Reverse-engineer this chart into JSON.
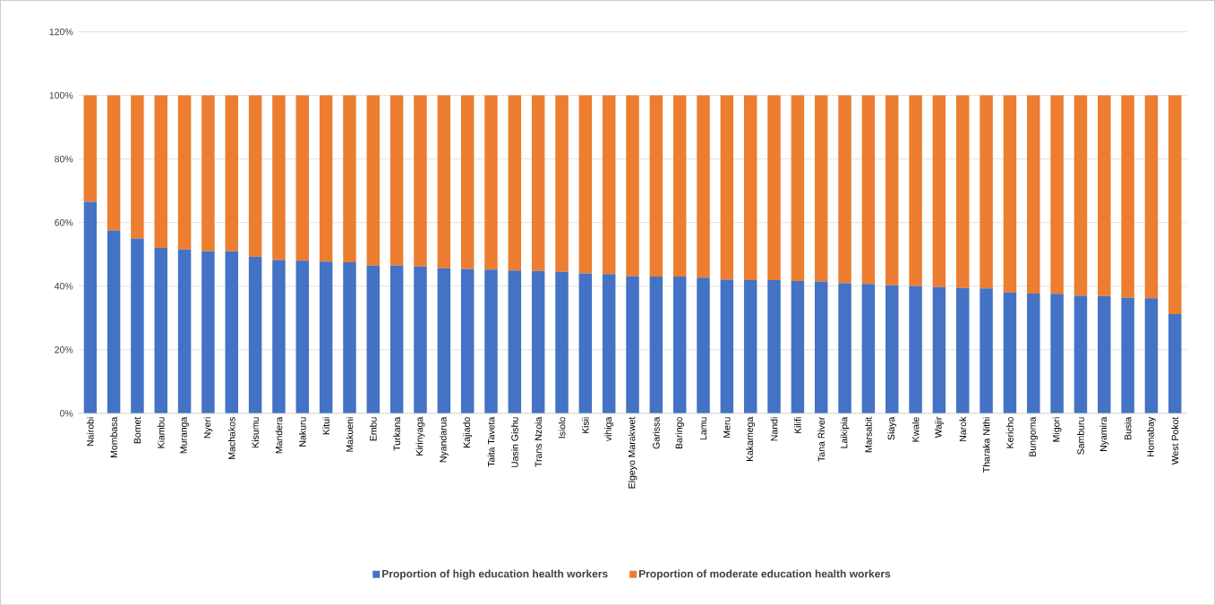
{
  "chart_data": {
    "type": "bar",
    "stacked": true,
    "categories": [
      "Nairobi",
      "Mombasa",
      "Bomet",
      "Kiambu",
      "Muranga",
      "Nyeri",
      "Machakos",
      "Kisumu",
      "Mandera",
      "Nakuru",
      "Kitui",
      "Makueni",
      "Embu",
      "Turkana",
      "Kirinyaga",
      "Nyandarua",
      "Kajiado",
      "Taita Taveta",
      "Uasin Gishu",
      "Trans Nzoia",
      "Isiolo",
      "Kisii",
      "vihiga",
      "Elgeyo Marakwet",
      "Garissa",
      "Baringo",
      "Lamu",
      "Meru",
      "Kakamega",
      "Nandi",
      "Kilifi",
      "Tana River",
      "Laikipia",
      "Marsabit",
      "Siaya",
      "Kwale",
      "Wajir",
      "Narok",
      "Tharaka Nithi",
      "Kericho",
      "Bungoma",
      "Migori",
      "Samburu",
      "Nyamira",
      "Busia",
      "Homabay",
      "West Pokot"
    ],
    "series": [
      {
        "name": "Proportion of high education health workers",
        "color": "#4472c4",
        "values": [
          66.5,
          57.5,
          55,
          52,
          51.5,
          51,
          51,
          49.3,
          48.2,
          48,
          47.7,
          47.5,
          46.5,
          46.5,
          46.2,
          45.6,
          45.4,
          45.2,
          44.9,
          44.8,
          44.5,
          44,
          43.8,
          43.1,
          43,
          43,
          42.7,
          42,
          41.9,
          41.9,
          41.6,
          41.5,
          40.9,
          40.7,
          40.3,
          40,
          39.7,
          39.4,
          39.3,
          38,
          37.7,
          37.6,
          37,
          36.9,
          36.3,
          36.2,
          31.2
        ]
      },
      {
        "name": "Proportion of moderate education health workers",
        "color": "#ed7d31",
        "values": [
          33.5,
          42.5,
          45,
          48,
          48.5,
          49,
          49,
          50.7,
          51.8,
          52,
          52.3,
          52.5,
          53.5,
          53.5,
          53.8,
          54.4,
          54.6,
          54.8,
          55.1,
          55.2,
          55.5,
          56,
          56.2,
          56.9,
          57,
          57,
          57.3,
          58,
          58.1,
          58.1,
          58.4,
          58.5,
          59.1,
          59.3,
          59.7,
          60,
          60.3,
          60.6,
          60.7,
          62,
          62.3,
          62.4,
          63,
          63.1,
          63.7,
          63.8,
          68.8
        ]
      }
    ],
    "ylim": [
      0,
      120
    ],
    "yticks": [
      {
        "value": 0,
        "label": "0%"
      },
      {
        "value": 20,
        "label": "20%"
      },
      {
        "value": 40,
        "label": "40%"
      },
      {
        "value": 60,
        "label": "60%"
      },
      {
        "value": 80,
        "label": "80%"
      },
      {
        "value": 100,
        "label": "100%"
      },
      {
        "value": 120,
        "label": "120%"
      }
    ],
    "grid": "y",
    "legend": "bottom"
  }
}
